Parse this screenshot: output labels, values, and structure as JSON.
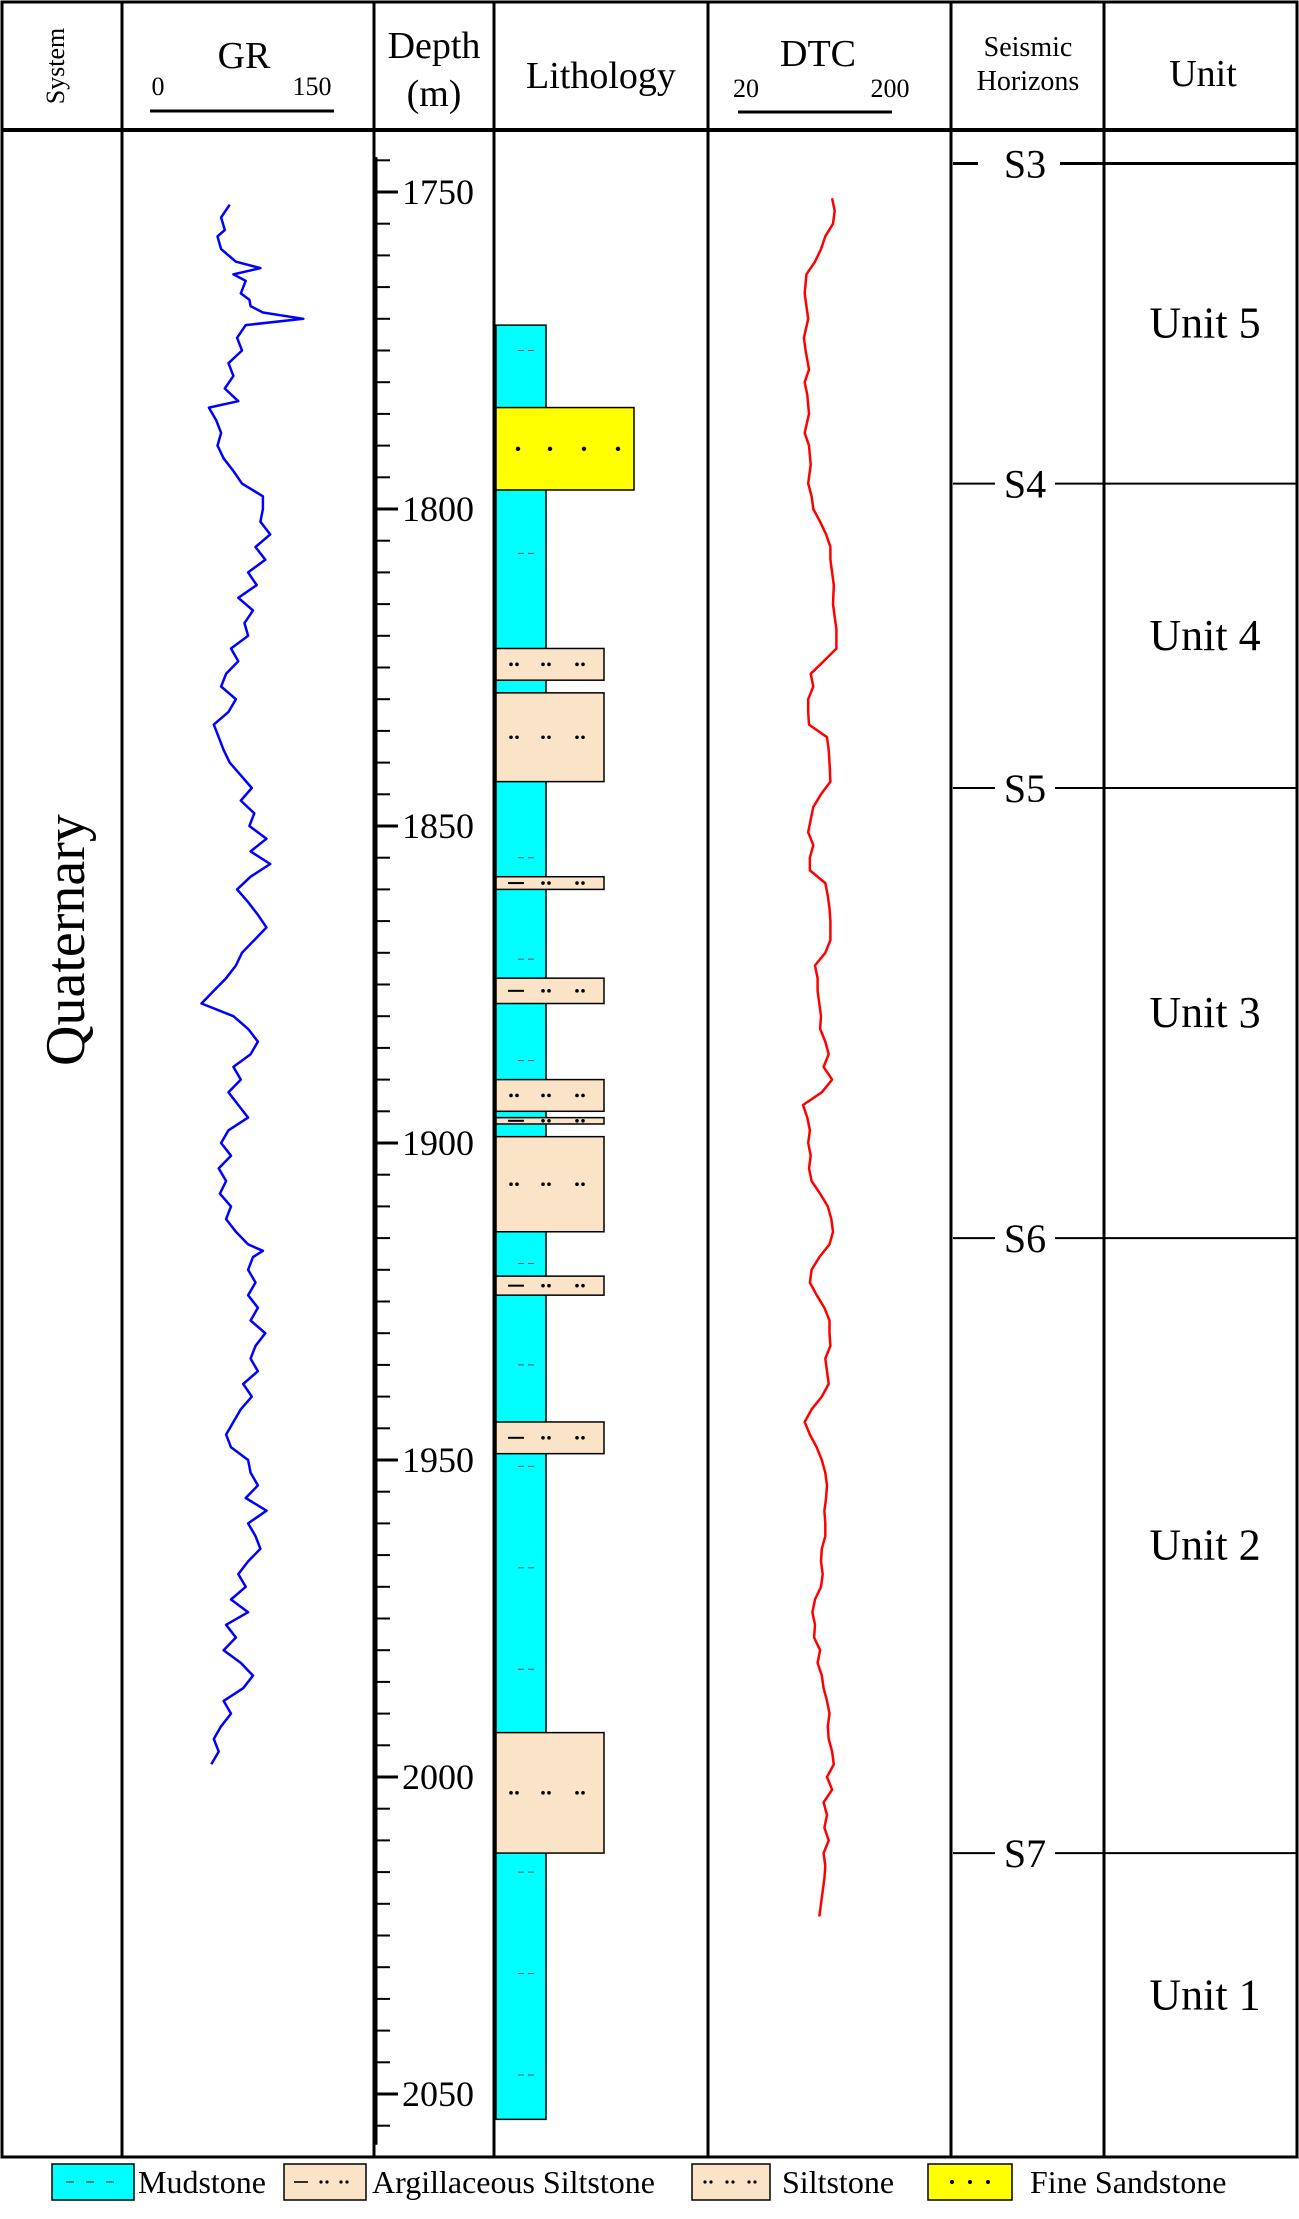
{
  "header": {
    "system": "System",
    "gr": {
      "label": "GR",
      "min": "0",
      "max": "150"
    },
    "depth": {
      "line1": "Depth",
      "line2": "(m)"
    },
    "lithology": "Lithology",
    "dtc": {
      "label": "DTC",
      "min": "20",
      "max": "200"
    },
    "seismic": {
      "line1": "Seismic",
      "line2": "Horizons"
    },
    "unit": "Unit"
  },
  "system_name": "Quaternary",
  "depth_ticks": [
    "1750",
    "1800",
    "1850",
    "1900",
    "1950",
    "2000",
    "2050"
  ],
  "horizons": [
    {
      "name": "S3",
      "depth": 1745.5
    },
    {
      "name": "S4",
      "depth": 1796
    },
    {
      "name": "S5",
      "depth": 1844
    },
    {
      "name": "S6",
      "depth": 1915
    },
    {
      "name": "S7",
      "depth": 2012
    }
  ],
  "units": [
    {
      "name": "Unit 5",
      "top": 1745.5,
      "bottom": 1796
    },
    {
      "name": "Unit 4",
      "top": 1796,
      "bottom": 1844
    },
    {
      "name": "Unit 3",
      "top": 1844,
      "bottom": 1915
    },
    {
      "name": "Unit 2",
      "top": 1915,
      "bottom": 2012
    },
    {
      "name": "Unit 1",
      "top": 2012,
      "bottom": 2057
    }
  ],
  "lithology_beds": [
    {
      "type": "fine_sandstone",
      "top": 1784,
      "bottom": 1797
    },
    {
      "type": "siltstone",
      "top": 1822,
      "bottom": 1827
    },
    {
      "type": "siltstone",
      "top": 1829,
      "bottom": 1843
    },
    {
      "type": "argillaceous_siltstone",
      "top": 1858,
      "bottom": 1860
    },
    {
      "type": "argillaceous_siltstone",
      "top": 1874,
      "bottom": 1878
    },
    {
      "type": "siltstone",
      "top": 1890,
      "bottom": 1895
    },
    {
      "type": "argillaceous_siltstone",
      "top": 1896,
      "bottom": 1897
    },
    {
      "type": "siltstone",
      "top": 1899,
      "bottom": 1914
    },
    {
      "type": "argillaceous_siltstone",
      "top": 1921,
      "bottom": 1924
    },
    {
      "type": "argillaceous_siltstone",
      "top": 1944,
      "bottom": 1949
    },
    {
      "type": "siltstone",
      "top": 1993,
      "bottom": 2012
    }
  ],
  "mudstone_column": {
    "top": 1771,
    "bottom": 2054
  },
  "legend": [
    {
      "type": "mudstone",
      "label": "Mudstone",
      "color": "#00ffff"
    },
    {
      "type": "argillaceous_siltstone",
      "label": "Argillaceous  Siltstone",
      "color": "#fae3c6"
    },
    {
      "type": "siltstone",
      "label": "Siltstone",
      "color": "#fae3c6"
    },
    {
      "type": "fine_sandstone",
      "label": "Fine  Sandstone",
      "color": "#ffff00"
    }
  ],
  "colors": {
    "gr_curve": "#0000ff",
    "dtc_curve": "#ff0000",
    "mudstone": "#00ffff",
    "siltstone": "#fae3c6",
    "fine_sandstone": "#ffff00"
  },
  "chart_data": {
    "type": "line",
    "depth_range": [
      1745,
      2058
    ],
    "series": [
      {
        "name": "GR",
        "range": [
          0,
          150
        ],
        "points": [
          [
            1752,
            65
          ],
          [
            1754,
            58
          ],
          [
            1756,
            61
          ],
          [
            1757,
            55
          ],
          [
            1759,
            58
          ],
          [
            1761,
            70
          ],
          [
            1762,
            90
          ],
          [
            1763,
            68
          ],
          [
            1764,
            78
          ],
          [
            1766,
            74
          ],
          [
            1767,
            81
          ],
          [
            1768,
            82
          ],
          [
            1769,
            92
          ],
          [
            1770,
            125
          ],
          [
            1771,
            78
          ],
          [
            1773,
            71
          ],
          [
            1775,
            75
          ],
          [
            1777,
            64
          ],
          [
            1779,
            68
          ],
          [
            1781,
            61
          ],
          [
            1783,
            72
          ],
          [
            1784,
            48
          ],
          [
            1786,
            54
          ],
          [
            1788,
            58
          ],
          [
            1790,
            55
          ],
          [
            1792,
            60
          ],
          [
            1794,
            68
          ],
          [
            1796,
            75
          ],
          [
            1798,
            92
          ],
          [
            1800,
            92
          ],
          [
            1802,
            90
          ],
          [
            1804,
            98
          ],
          [
            1806,
            86
          ],
          [
            1808,
            94
          ],
          [
            1810,
            80
          ],
          [
            1812,
            87
          ],
          [
            1814,
            72
          ],
          [
            1816,
            84
          ],
          [
            1818,
            77
          ],
          [
            1820,
            80
          ],
          [
            1822,
            66
          ],
          [
            1824,
            72
          ],
          [
            1826,
            62
          ],
          [
            1828,
            58
          ],
          [
            1830,
            70
          ],
          [
            1832,
            64
          ],
          [
            1834,
            52
          ],
          [
            1836,
            56
          ],
          [
            1838,
            60
          ],
          [
            1840,
            65
          ],
          [
            1842,
            74
          ],
          [
            1844,
            83
          ],
          [
            1846,
            74
          ],
          [
            1848,
            85
          ],
          [
            1850,
            81
          ],
          [
            1852,
            95
          ],
          [
            1854,
            82
          ],
          [
            1856,
            98
          ],
          [
            1858,
            82
          ],
          [
            1860,
            71
          ],
          [
            1862,
            80
          ],
          [
            1864,
            88
          ],
          [
            1866,
            95
          ],
          [
            1868,
            85
          ],
          [
            1870,
            75
          ],
          [
            1872,
            70
          ],
          [
            1874,
            62
          ],
          [
            1876,
            52
          ],
          [
            1878,
            42
          ],
          [
            1880,
            68
          ],
          [
            1882,
            80
          ],
          [
            1884,
            88
          ],
          [
            1886,
            82
          ],
          [
            1888,
            68
          ],
          [
            1890,
            74
          ],
          [
            1892,
            64
          ],
          [
            1894,
            72
          ],
          [
            1896,
            80
          ],
          [
            1898,
            64
          ],
          [
            1900,
            58
          ],
          [
            1902,
            66
          ],
          [
            1904,
            56
          ],
          [
            1906,
            62
          ],
          [
            1908,
            57
          ],
          [
            1910,
            66
          ],
          [
            1912,
            62
          ],
          [
            1914,
            70
          ],
          [
            1916,
            80
          ],
          [
            1917,
            92
          ],
          [
            1918,
            84
          ],
          [
            1920,
            80
          ],
          [
            1922,
            86
          ],
          [
            1924,
            80
          ],
          [
            1926,
            88
          ],
          [
            1928,
            82
          ],
          [
            1930,
            94
          ],
          [
            1932,
            86
          ],
          [
            1934,
            82
          ],
          [
            1936,
            88
          ],
          [
            1938,
            76
          ],
          [
            1940,
            83
          ],
          [
            1942,
            74
          ],
          [
            1944,
            68
          ],
          [
            1946,
            62
          ],
          [
            1948,
            66
          ],
          [
            1950,
            80
          ],
          [
            1952,
            82
          ],
          [
            1954,
            88
          ],
          [
            1956,
            78
          ],
          [
            1958,
            95
          ],
          [
            1960,
            80
          ],
          [
            1962,
            86
          ],
          [
            1964,
            90
          ],
          [
            1966,
            80
          ],
          [
            1968,
            72
          ],
          [
            1970,
            78
          ],
          [
            1972,
            66
          ],
          [
            1974,
            80
          ],
          [
            1976,
            62
          ],
          [
            1978,
            70
          ],
          [
            1980,
            60
          ],
          [
            1982,
            74
          ],
          [
            1984,
            84
          ],
          [
            1986,
            76
          ],
          [
            1988,
            60
          ],
          [
            1990,
            66
          ],
          [
            1992,
            58
          ],
          [
            1994,
            52
          ],
          [
            1996,
            56
          ],
          [
            1998,
            50
          ]
        ]
      },
      {
        "name": "DTC",
        "range": [
          20,
          200
        ],
        "points": [
          [
            1751,
            130
          ],
          [
            1753,
            133
          ],
          [
            1755,
            131
          ],
          [
            1757,
            122
          ],
          [
            1759,
            117
          ],
          [
            1761,
            110
          ],
          [
            1763,
            100
          ],
          [
            1766,
            98
          ],
          [
            1768,
            100
          ],
          [
            1770,
            102
          ],
          [
            1773,
            97
          ],
          [
            1775,
            99
          ],
          [
            1778,
            103
          ],
          [
            1780,
            98
          ],
          [
            1782,
            101
          ],
          [
            1785,
            103
          ],
          [
            1788,
            98
          ],
          [
            1790,
            103
          ],
          [
            1793,
            105
          ],
          [
            1796,
            102
          ],
          [
            1798,
            106
          ],
          [
            1800,
            108
          ],
          [
            1802,
            116
          ],
          [
            1804,
            123
          ],
          [
            1806,
            128
          ],
          [
            1808,
            128
          ],
          [
            1810,
            130
          ],
          [
            1812,
            132
          ],
          [
            1815,
            131
          ],
          [
            1817,
            133
          ],
          [
            1819,
            135
          ],
          [
            1822,
            135
          ],
          [
            1824,
            120
          ],
          [
            1826,
            105
          ],
          [
            1828,
            108
          ],
          [
            1830,
            102
          ],
          [
            1832,
            102
          ],
          [
            1834,
            103
          ],
          [
            1836,
            124
          ],
          [
            1838,
            126
          ],
          [
            1840,
            127
          ],
          [
            1843,
            128
          ],
          [
            1845,
            117
          ],
          [
            1847,
            108
          ],
          [
            1849,
            105
          ],
          [
            1851,
            102
          ],
          [
            1853,
            108
          ],
          [
            1855,
            104
          ],
          [
            1857,
            104
          ],
          [
            1859,
            122
          ],
          [
            1861,
            125
          ],
          [
            1863,
            127
          ],
          [
            1865,
            128
          ],
          [
            1868,
            128
          ],
          [
            1870,
            122
          ],
          [
            1872,
            110
          ],
          [
            1874,
            113
          ],
          [
            1876,
            113
          ],
          [
            1878,
            115
          ],
          [
            1880,
            117
          ],
          [
            1882,
            116
          ],
          [
            1884,
            122
          ],
          [
            1886,
            126
          ],
          [
            1888,
            120
          ],
          [
            1890,
            130
          ],
          [
            1892,
            118
          ],
          [
            1894,
            96
          ],
          [
            1896,
            101
          ],
          [
            1898,
            104
          ],
          [
            1900,
            102
          ],
          [
            1902,
            105
          ],
          [
            1904,
            103
          ],
          [
            1906,
            106
          ],
          [
            1908,
            116
          ],
          [
            1910,
            125
          ],
          [
            1912,
            129
          ],
          [
            1914,
            131
          ],
          [
            1916,
            127
          ],
          [
            1918,
            115
          ],
          [
            1920,
            106
          ],
          [
            1922,
            104
          ],
          [
            1924,
            112
          ],
          [
            1926,
            121
          ],
          [
            1928,
            127
          ],
          [
            1930,
            127
          ],
          [
            1932,
            128
          ],
          [
            1934,
            122
          ],
          [
            1936,
            124
          ],
          [
            1938,
            126
          ],
          [
            1940,
            118
          ],
          [
            1942,
            106
          ],
          [
            1944,
            98
          ],
          [
            1946,
            104
          ],
          [
            1948,
            112
          ],
          [
            1950,
            118
          ],
          [
            1952,
            122
          ],
          [
            1954,
            124
          ],
          [
            1956,
            123
          ],
          [
            1958,
            121
          ],
          [
            1960,
            122
          ],
          [
            1962,
            122
          ],
          [
            1964,
            118
          ],
          [
            1966,
            117
          ],
          [
            1968,
            119
          ],
          [
            1970,
            117
          ],
          [
            1972,
            110
          ],
          [
            1974,
            107
          ],
          [
            1976,
            110
          ],
          [
            1978,
            109
          ],
          [
            1980,
            116
          ],
          [
            1982,
            113
          ],
          [
            1984,
            118
          ],
          [
            1986,
            120
          ],
          [
            1988,
            124
          ],
          [
            1990,
            127
          ],
          [
            1992,
            125
          ],
          [
            1994,
            126
          ],
          [
            1996,
            130
          ],
          [
            1998,
            132
          ],
          [
            2000,
            124
          ],
          [
            2002,
            130
          ],
          [
            2004,
            120
          ],
          [
            2006,
            124
          ],
          [
            2008,
            121
          ],
          [
            2010,
            126
          ],
          [
            2012,
            120
          ],
          [
            2014,
            122
          ],
          [
            2016,
            121
          ],
          [
            2018,
            119
          ],
          [
            2020,
            117
          ],
          [
            2022,
            115
          ]
        ]
      }
    ]
  }
}
